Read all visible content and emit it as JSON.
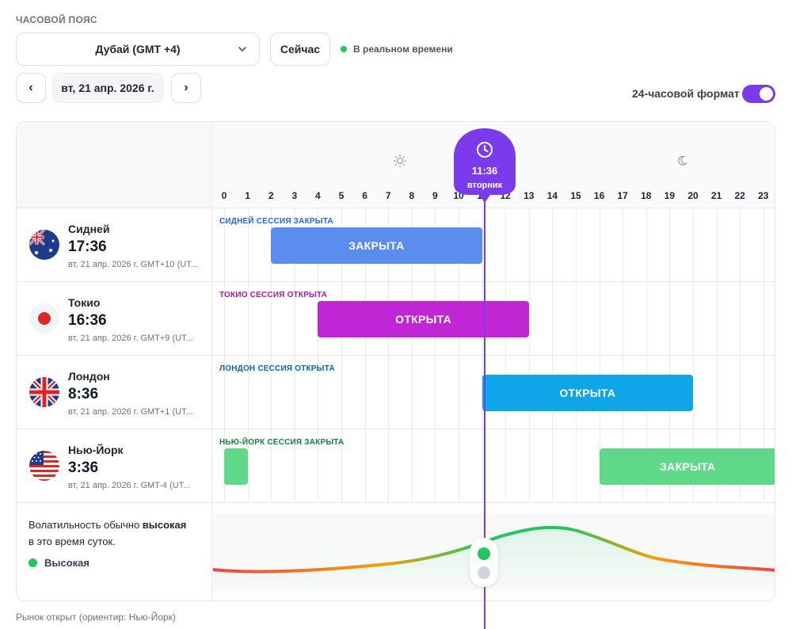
{
  "timezone": {
    "label": "ЧАСОВОЙ ПОЯС",
    "selected": "Дубай (GMT +4)",
    "now_button": "Сейчас",
    "realtime_label": "В реальном времени"
  },
  "date_nav": {
    "prev": "‹",
    "date": "вт, 21 апр. 2026 г.",
    "next": "›"
  },
  "format_toggle": {
    "label": "24-часовой формат",
    "on": true
  },
  "timeline": {
    "hours": [
      "0",
      "1",
      "2",
      "3",
      "4",
      "5",
      "6",
      "7",
      "8",
      "9",
      "10",
      "11",
      "12",
      "13",
      "14",
      "15",
      "16",
      "17",
      "18",
      "19",
      "20",
      "21",
      "22",
      "23"
    ],
    "now": {
      "time": "11:36",
      "day": "вторник",
      "hour": 11.6
    }
  },
  "markets": [
    {
      "city": "Сидней",
      "time": "17:36",
      "meta": "вт, 21 апр. 2026 г. GMT+10 (UT...",
      "session_label": "СИДНЕЙ СЕССИЯ ЗАКРЫТА",
      "status": "ЗАКРЫТА",
      "label_color": "#2563eb",
      "bar_color": "#5b8def",
      "ranges": [
        [
          2,
          11
        ]
      ],
      "flag": "australia-flag-icon"
    },
    {
      "city": "Токио",
      "time": "16:36",
      "meta": "вт, 21 апр. 2026 г. GMT+9 (UT...",
      "session_label": "ТОКИО СЕССИЯ ОТКРЫТА",
      "status": "ОТКРЫТА",
      "label_color": "#a21caf",
      "bar_color": "#c026d3",
      "ranges": [
        [
          4,
          13
        ]
      ],
      "flag": "japan-flag-icon"
    },
    {
      "city": "Лондон",
      "time": "8:36",
      "meta": "вт, 21 апр. 2026 г. GMT+1 (UT...",
      "session_label": "ЛОНДОН СЕССИЯ ОТКРЫТА",
      "status": "ОТКРЫТА",
      "label_color": "#0369a1",
      "bar_color": "#0ea5e9",
      "ranges": [
        [
          11,
          20
        ]
      ],
      "flag": "uk-flag-icon"
    },
    {
      "city": "Нью-Йорк",
      "time": "3:36",
      "meta": "вт, 21 апр. 2026 г. GMT-4 (UT...",
      "session_label": "НЬЮ-ЙОРК СЕССИЯ ЗАКРЫТА",
      "status": "ЗАКРЫТА",
      "label_color": "#15803d",
      "bar_color": "#5fd88a",
      "ranges": [
        [
          0,
          1
        ],
        [
          16,
          24
        ]
      ],
      "flag": "usa-flag-icon"
    }
  ],
  "volatility": {
    "text_prefix": "Волатильность обычно ",
    "text_bold": "высокая",
    "text_suffix": "в это время суток.",
    "level": "Высокая",
    "level_color": "#22c55e"
  },
  "footer": "Рынок открыт (ориентир: Нью-Йорк)"
}
